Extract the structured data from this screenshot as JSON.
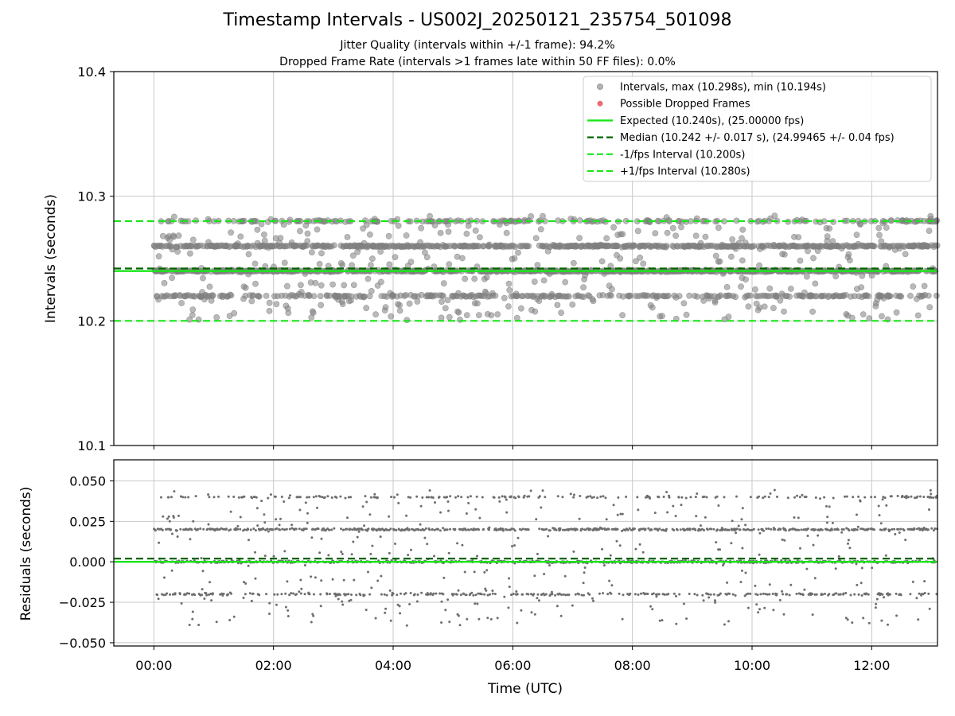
{
  "chart_data": [
    {
      "type": "scatter",
      "title": "Timestamp Intervals - US002J_20250121_235754_501098",
      "subtitle_lines": [
        "Jitter Quality (intervals within +/-1 frame): 94.2%",
        "Dropped Frame Rate (intervals >1 frames late within 50 FF files): 0.0%"
      ],
      "ylabel": "Intervals (seconds)",
      "ylim": [
        10.1,
        10.4
      ],
      "yticks": [
        "10.1",
        "10.2",
        "10.3",
        "10.4"
      ],
      "xlim_hours": [
        -0.67,
        13.1
      ],
      "grid": true,
      "legend_position": "upper right",
      "legend": [
        "Intervals, max (10.298s), min (10.194s)",
        "Possible Dropped Frames",
        "Expected (10.240s), (25.00000 fps)",
        "Median (10.242 +/- 0.017 s), (24.99465 +/- 0.04 fps)",
        "-1/fps Interval (10.200s)",
        "+1/fps Interval (10.280s)"
      ],
      "lines": {
        "expected": 10.24,
        "median": 10.242,
        "minus_interval": 10.2,
        "plus_interval": 10.28
      },
      "scatter_levels": [
        10.22,
        10.24,
        10.26,
        10.28
      ],
      "level_weights": [
        0.18,
        0.38,
        0.34,
        0.1
      ],
      "max": 10.298,
      "min": 10.194,
      "colors": {
        "points": "#808080",
        "dropped": "#e8454c",
        "expected": "#19e619",
        "median": "#006400",
        "bounds": "#19e619",
        "grid": "#c8c8c8"
      }
    },
    {
      "type": "scatter",
      "ylabel": "Residuals (seconds)",
      "xlabel": "Time (UTC)",
      "ylim": [
        -0.052,
        0.063
      ],
      "yticks": [
        "−0.050",
        "−0.025",
        "0.000",
        "0.025",
        "0.050"
      ],
      "xticks": [
        "00:00",
        "02:00",
        "04:00",
        "06:00",
        "08:00",
        "10:00",
        "12:00"
      ],
      "residual_levels": [
        -0.02,
        0.0,
        0.02,
        0.04
      ],
      "median_residual": 0.002
    }
  ]
}
